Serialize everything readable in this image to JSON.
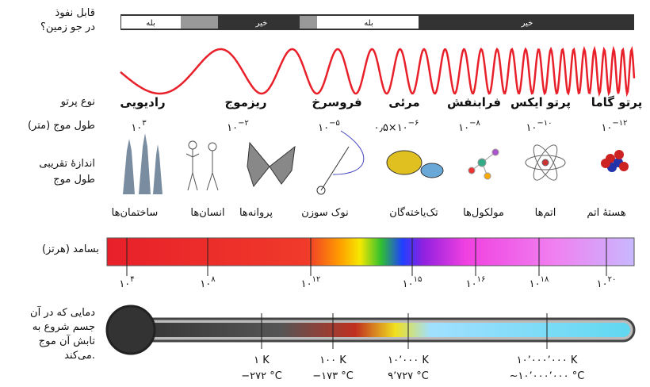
{
  "labels": {
    "penetration": [
      "قابل نفوذ",
      "در جو زمین؟"
    ],
    "type": "نوع پرتو",
    "wavelength": "طول موج (متر)",
    "size": [
      "اندازهٔ تقریبی",
      "طول موج"
    ],
    "frequency": "بسامد (هرتز)",
    "temperature": [
      "دمایی که در آن",
      "جسم شروع به",
      "تابش آن موج",
      "می‌کند."
    ]
  },
  "penetration": {
    "yes": "بله",
    "no": "خیر"
  },
  "types": [
    "رادیویی",
    "ریزموج",
    "فروسرخ",
    "مرئی",
    "فرابنفش",
    "پرتو ایکس",
    "پرتو گاما"
  ],
  "wavelengths": [
    {
      "base": "۱۰",
      "exp": "۳"
    },
    {
      "base": "۱۰",
      "exp": "−۲"
    },
    {
      "base": "۱۰",
      "exp": "−۵"
    },
    {
      "base": "۰٫۵×۱۰",
      "exp": "−۶"
    },
    {
      "base": "۱۰",
      "exp": "−۸"
    },
    {
      "base": "۱۰",
      "exp": "−۱۰"
    },
    {
      "base": "۱۰",
      "exp": "−۱۲"
    }
  ],
  "sizes": [
    "ساختمان‌ها",
    "انسان‌ها",
    "پروانه‌ها",
    "نوک سوزن",
    "تک‌یاخته‌گان",
    "مولکول‌ها",
    "اتم‌ها",
    "هستهٔ اتم"
  ],
  "frequencies": [
    {
      "base": "۱۰",
      "exp": "۴"
    },
    {
      "base": "۱۰",
      "exp": "۸"
    },
    {
      "base": "۱۰",
      "exp": "۱۲"
    },
    {
      "base": "۱۰",
      "exp": "۱۵"
    },
    {
      "base": "۱۰",
      "exp": "۱۶"
    },
    {
      "base": "۱۰",
      "exp": "۱۸"
    },
    {
      "base": "۱۰",
      "exp": "۲۰"
    }
  ],
  "temperatures": [
    {
      "k": "۱ K",
      "c": "−۲۷۲ °C"
    },
    {
      "k": "۱۰۰ K",
      "c": "−۱۷۳ °C"
    },
    {
      "k": "۱۰٬۰۰۰ K",
      "c": "۹٬۷۲۷ °C"
    },
    {
      "k": "۱۰٬۰۰۰٬۰۰۰ K",
      "c": "~۱۰٬۰۰۰٬۰۰۰ °C"
    }
  ]
}
